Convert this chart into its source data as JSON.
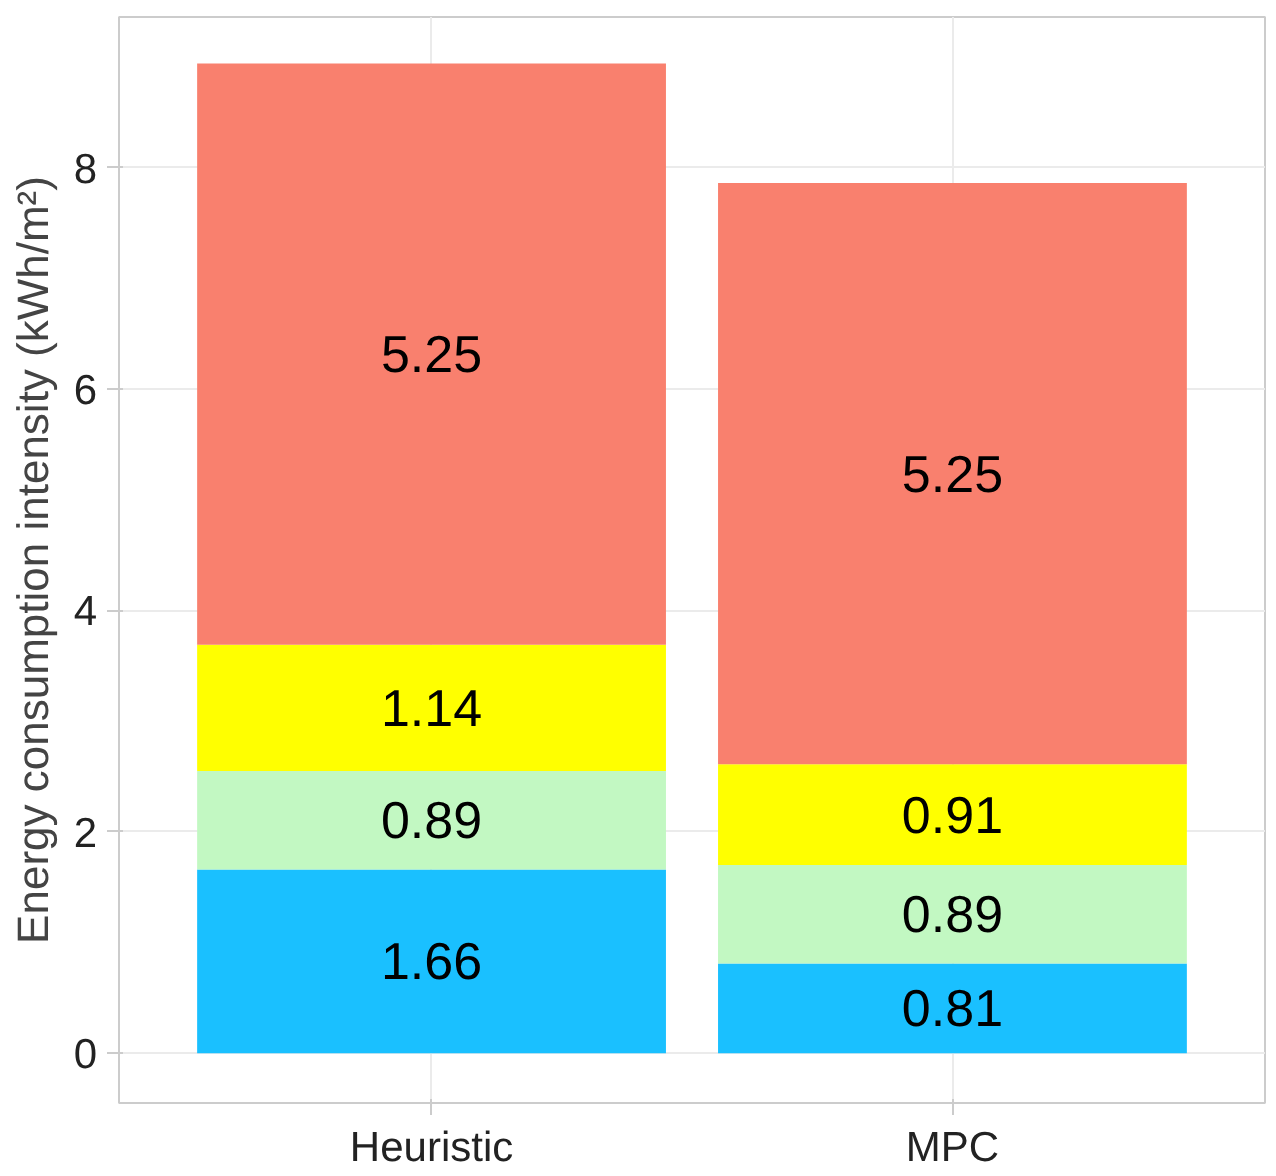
{
  "chart_data": {
    "type": "bar",
    "stacked": true,
    "ylabel": "Energy consumption intensity (kWh/m²)",
    "categories": [
      "Heuristic",
      "MPC"
    ],
    "series": [
      {
        "color": "#1ac0ff",
        "values": [
          1.66,
          0.81
        ]
      },
      {
        "color": "#c2f8c2",
        "values": [
          0.89,
          0.89
        ]
      },
      {
        "color": "#ffff00",
        "values": [
          1.14,
          0.91
        ]
      },
      {
        "color": "#f9806e",
        "values": [
          5.25,
          5.25
        ]
      }
    ],
    "data_labels": true,
    "ylim": [
      -0.45,
      9.36
    ],
    "yticks": [
      0,
      2,
      4,
      6,
      8
    ],
    "grid": true
  }
}
